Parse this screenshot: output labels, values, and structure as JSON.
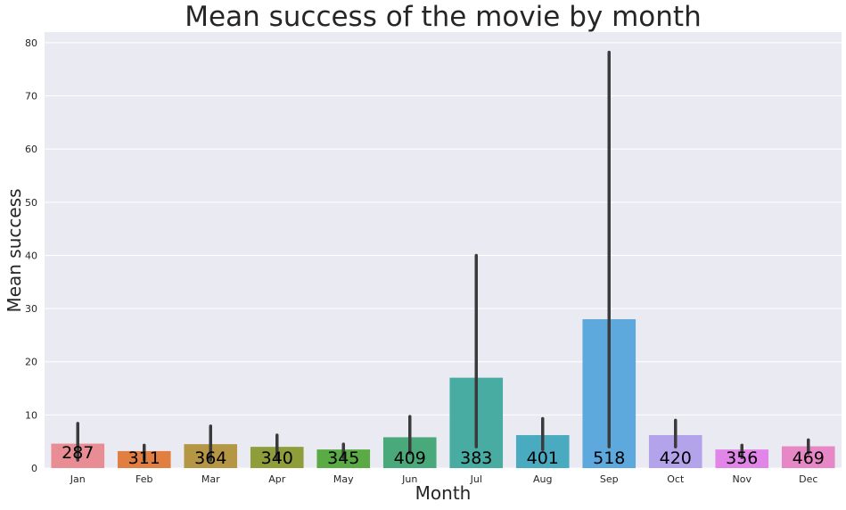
{
  "chart_data": {
    "type": "bar",
    "title": "Mean success of the movie by month",
    "xlabel": "Month",
    "ylabel": "Mean success",
    "categories": [
      "Jan",
      "Feb",
      "Mar",
      "Apr",
      "May",
      "Jun",
      "Jul",
      "Aug",
      "Sep",
      "Oct",
      "Nov",
      "Dec"
    ],
    "values": [
      4.6,
      3.2,
      4.5,
      4.0,
      3.5,
      5.8,
      17.0,
      6.2,
      28.0,
      6.2,
      3.5,
      4.1
    ],
    "error_low": [
      1.5,
      1.5,
      1.5,
      1.8,
      2.0,
      2.8,
      4.0,
      3.5,
      4.0,
      4.0,
      2.0,
      2.8
    ],
    "error_high": [
      8.4,
      4.3,
      7.9,
      6.2,
      4.5,
      9.7,
      40.0,
      9.3,
      78.2,
      9.0,
      4.3,
      5.3
    ],
    "data_labels": [
      "287",
      "311",
      "364",
      "340",
      "345",
      "409",
      "383",
      "401",
      "518",
      "420",
      "356",
      "469"
    ],
    "colors": [
      "#e88d94",
      "#e17f42",
      "#b49644",
      "#8f9d3a",
      "#5aaa45",
      "#4aa97a",
      "#48aca3",
      "#4aaac0",
      "#5da9dd",
      "#b2a3ea",
      "#e285e9",
      "#e887c5"
    ],
    "ylim": [
      0,
      82
    ],
    "yticks": [
      0,
      10,
      20,
      30,
      40,
      50,
      60,
      70,
      80
    ],
    "grid": true,
    "background": "#eaeaf2",
    "errorbar_color": "#3b3b3b"
  }
}
